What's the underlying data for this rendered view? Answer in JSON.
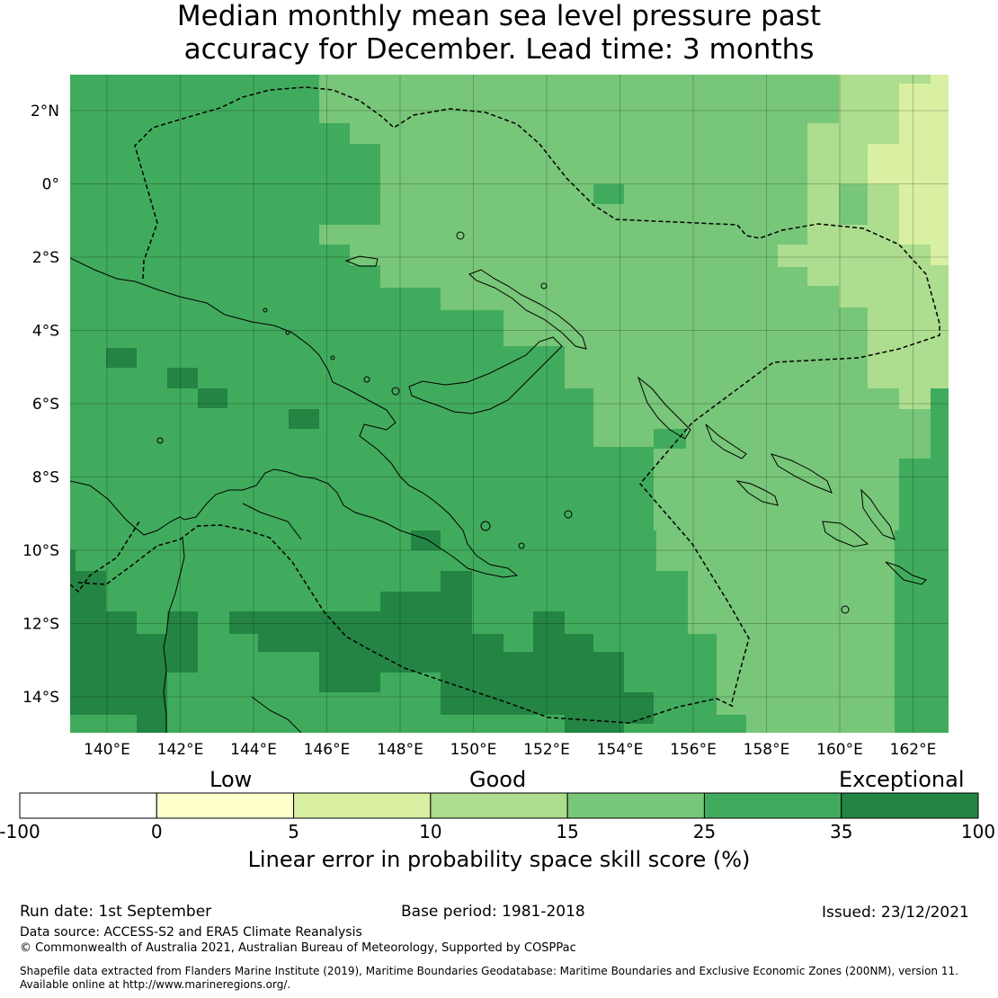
{
  "title": {
    "line1": "Median monthly mean sea level pressure past",
    "line2": "accuracy for December. Lead time: 3 months"
  },
  "map": {
    "lon_labels": [
      "140°E",
      "142°E",
      "144°E",
      "146°E",
      "148°E",
      "150°E",
      "152°E",
      "154°E",
      "156°E",
      "158°E",
      "160°E",
      "162°E"
    ],
    "lat_labels": [
      "2°N",
      "0°",
      "2°S",
      "4°S",
      "6°S",
      "8°S",
      "10°S",
      "12°S",
      "14°S"
    ],
    "colors": {
      "class_0_5": "#ffffcc",
      "class_5_10": "#d9f0a3",
      "class_10_15": "#addd8e",
      "class_15_25": "#78c679",
      "class_25_35": "#41ab5d",
      "class_35_100": "#238443",
      "coastline": "#000000",
      "boundary": "#000000"
    }
  },
  "colorbar": {
    "categories": [
      "Low",
      "Good",
      "Exceptional"
    ],
    "ticks": [
      "-100",
      "0",
      "5",
      "10",
      "15",
      "25",
      "35",
      "100"
    ],
    "colors": [
      "#ffffff",
      "#ffffcc",
      "#d9f0a3",
      "#addd8e",
      "#78c679",
      "#41ab5d",
      "#238443"
    ],
    "label": "Linear error in probability space skill score (%)"
  },
  "footer": {
    "run_date": "Run date: 1st September",
    "base_period": "Base period: 1981-2018",
    "issued": "Issued: 23/12/2021",
    "data_source": "Data source: ACCESS-S2 and ERA5 Climate Reanalysis",
    "copyright": "© Commonwealth of Australia 2021, Australian Bureau of Meteorology, Supported by COSPPac",
    "shapefile_line1": "Shapefile data extracted from Flanders Marine Institute (2019), Maritime Boundaries Geodatabase: Maritime Boundaries and Exclusive Economic Zones (200NM), version 11.",
    "shapefile_line2": "Available online at http://www.marineregions.org/."
  }
}
